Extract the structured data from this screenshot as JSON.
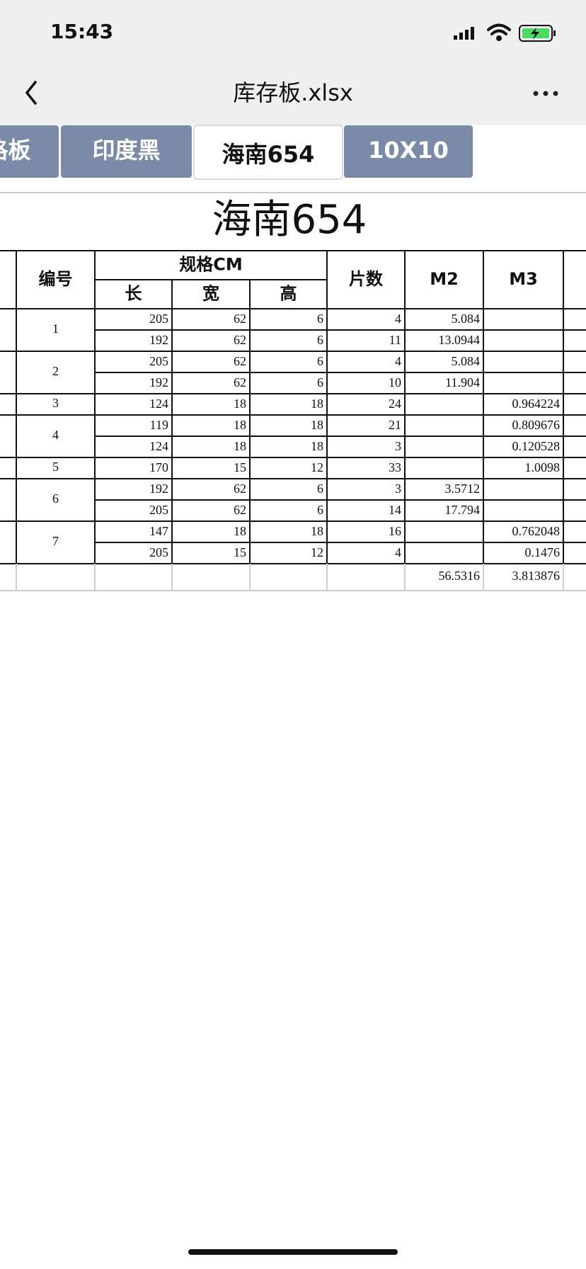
{
  "status_bar": {
    "time": "15:43"
  },
  "nav": {
    "title": "库存板.xlsx"
  },
  "tabs": [
    "格板",
    "印度黑",
    "海南654",
    "10X10"
  ],
  "active_tab": 2,
  "sheet": {
    "title": "海南654",
    "headers": {
      "id": "编号",
      "spec": "规格CM",
      "length": "长",
      "width": "宽",
      "height": "高",
      "pieces": "片数",
      "m2": "M2",
      "m3": "M3"
    },
    "groups": [
      {
        "id": 1,
        "rows": [
          {
            "length": 205,
            "width": 62,
            "height": 6,
            "pieces": 4,
            "m2": 5.084
          },
          {
            "length": 192,
            "width": 62,
            "height": 6,
            "pieces": 11,
            "m2": 13.0944
          }
        ]
      },
      {
        "id": 2,
        "rows": [
          {
            "length": 205,
            "width": 62,
            "height": 6,
            "pieces": 4,
            "m2": 5.084
          },
          {
            "length": 192,
            "width": 62,
            "height": 6,
            "pieces": 10,
            "m2": 11.904
          }
        ]
      },
      {
        "id": 3,
        "rows": [
          {
            "length": 124,
            "width": 18,
            "height": 18,
            "pieces": 24,
            "m3": 0.964224
          }
        ]
      },
      {
        "id": 4,
        "rows": [
          {
            "length": 119,
            "width": 18,
            "height": 18,
            "pieces": 21,
            "m3": 0.809676
          },
          {
            "length": 124,
            "width": 18,
            "height": 18,
            "pieces": 3,
            "m3": 0.120528
          }
        ]
      },
      {
        "id": 5,
        "rows": [
          {
            "length": 170,
            "width": 15,
            "height": 12,
            "pieces": 33,
            "m3": 1.0098
          }
        ]
      },
      {
        "id": 6,
        "rows": [
          {
            "length": 192,
            "width": 62,
            "height": 6,
            "pieces": 3,
            "m2": 3.5712
          },
          {
            "length": 205,
            "width": 62,
            "height": 6,
            "pieces": 14,
            "m2": 17.794
          }
        ]
      },
      {
        "id": 7,
        "rows": [
          {
            "length": 147,
            "width": 18,
            "height": 18,
            "pieces": 16,
            "m3": 0.762048
          },
          {
            "length": 205,
            "width": 15,
            "height": 12,
            "pieces": 4,
            "m3": 0.1476
          }
        ]
      }
    ],
    "totals": {
      "m2": 56.5316,
      "m3": 3.813876
    }
  }
}
